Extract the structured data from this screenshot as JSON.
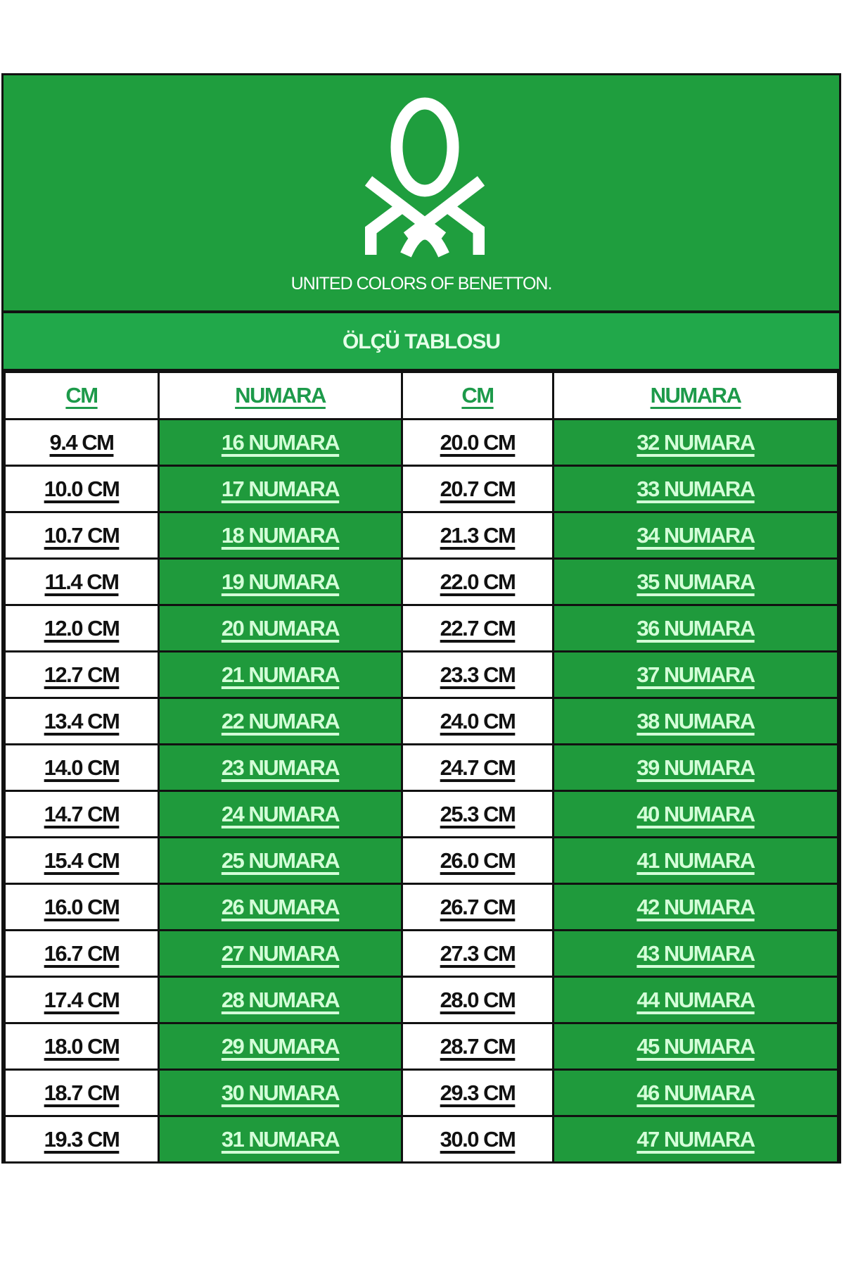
{
  "brand": {
    "name": "UNITED COLORS OF BENETTON.",
    "logo": "benetton-knot-logo",
    "green": "#1f9e3e"
  },
  "title": "ÖLÇÜ TABLOSU",
  "headers": [
    "CM",
    "NUMARA",
    "CM",
    "NUMARA"
  ],
  "rows": [
    [
      "9.4 CM",
      "16 NUMARA",
      "20.0 CM",
      "32 NUMARA"
    ],
    [
      "10.0 CM",
      "17 NUMARA",
      "20.7 CM",
      "33 NUMARA"
    ],
    [
      "10.7 CM",
      "18 NUMARA",
      "21.3 CM",
      "34 NUMARA"
    ],
    [
      "11.4 CM",
      "19 NUMARA",
      "22.0 CM",
      "35 NUMARA"
    ],
    [
      "12.0 CM",
      "20 NUMARA",
      "22.7 CM",
      "36 NUMARA"
    ],
    [
      "12.7 CM",
      "21 NUMARA",
      "23.3 CM",
      "37 NUMARA"
    ],
    [
      "13.4 CM",
      "22 NUMARA",
      "24.0 CM",
      "38 NUMARA"
    ],
    [
      "14.0 CM",
      "23 NUMARA",
      "24.7 CM",
      "39 NUMARA"
    ],
    [
      "14.7 CM",
      "24 NUMARA",
      "25.3 CM",
      "40 NUMARA"
    ],
    [
      "15.4 CM",
      "25 NUMARA",
      "26.0 CM",
      "41 NUMARA"
    ],
    [
      "16.0 CM",
      "26 NUMARA",
      "26.7 CM",
      "42 NUMARA"
    ],
    [
      "16.7 CM",
      "27 NUMARA",
      "27.3 CM",
      "43 NUMARA"
    ],
    [
      "17.4 CM",
      "28 NUMARA",
      "28.0 CM",
      "44 NUMARA"
    ],
    [
      "18.0 CM",
      "29 NUMARA",
      "28.7 CM",
      "45 NUMARA"
    ],
    [
      "18.7 CM",
      "30 NUMARA",
      "29.3 CM",
      "46 NUMARA"
    ],
    [
      "19.3 CM",
      "31 NUMARA",
      "30.0 CM",
      "47 NUMARA"
    ]
  ]
}
